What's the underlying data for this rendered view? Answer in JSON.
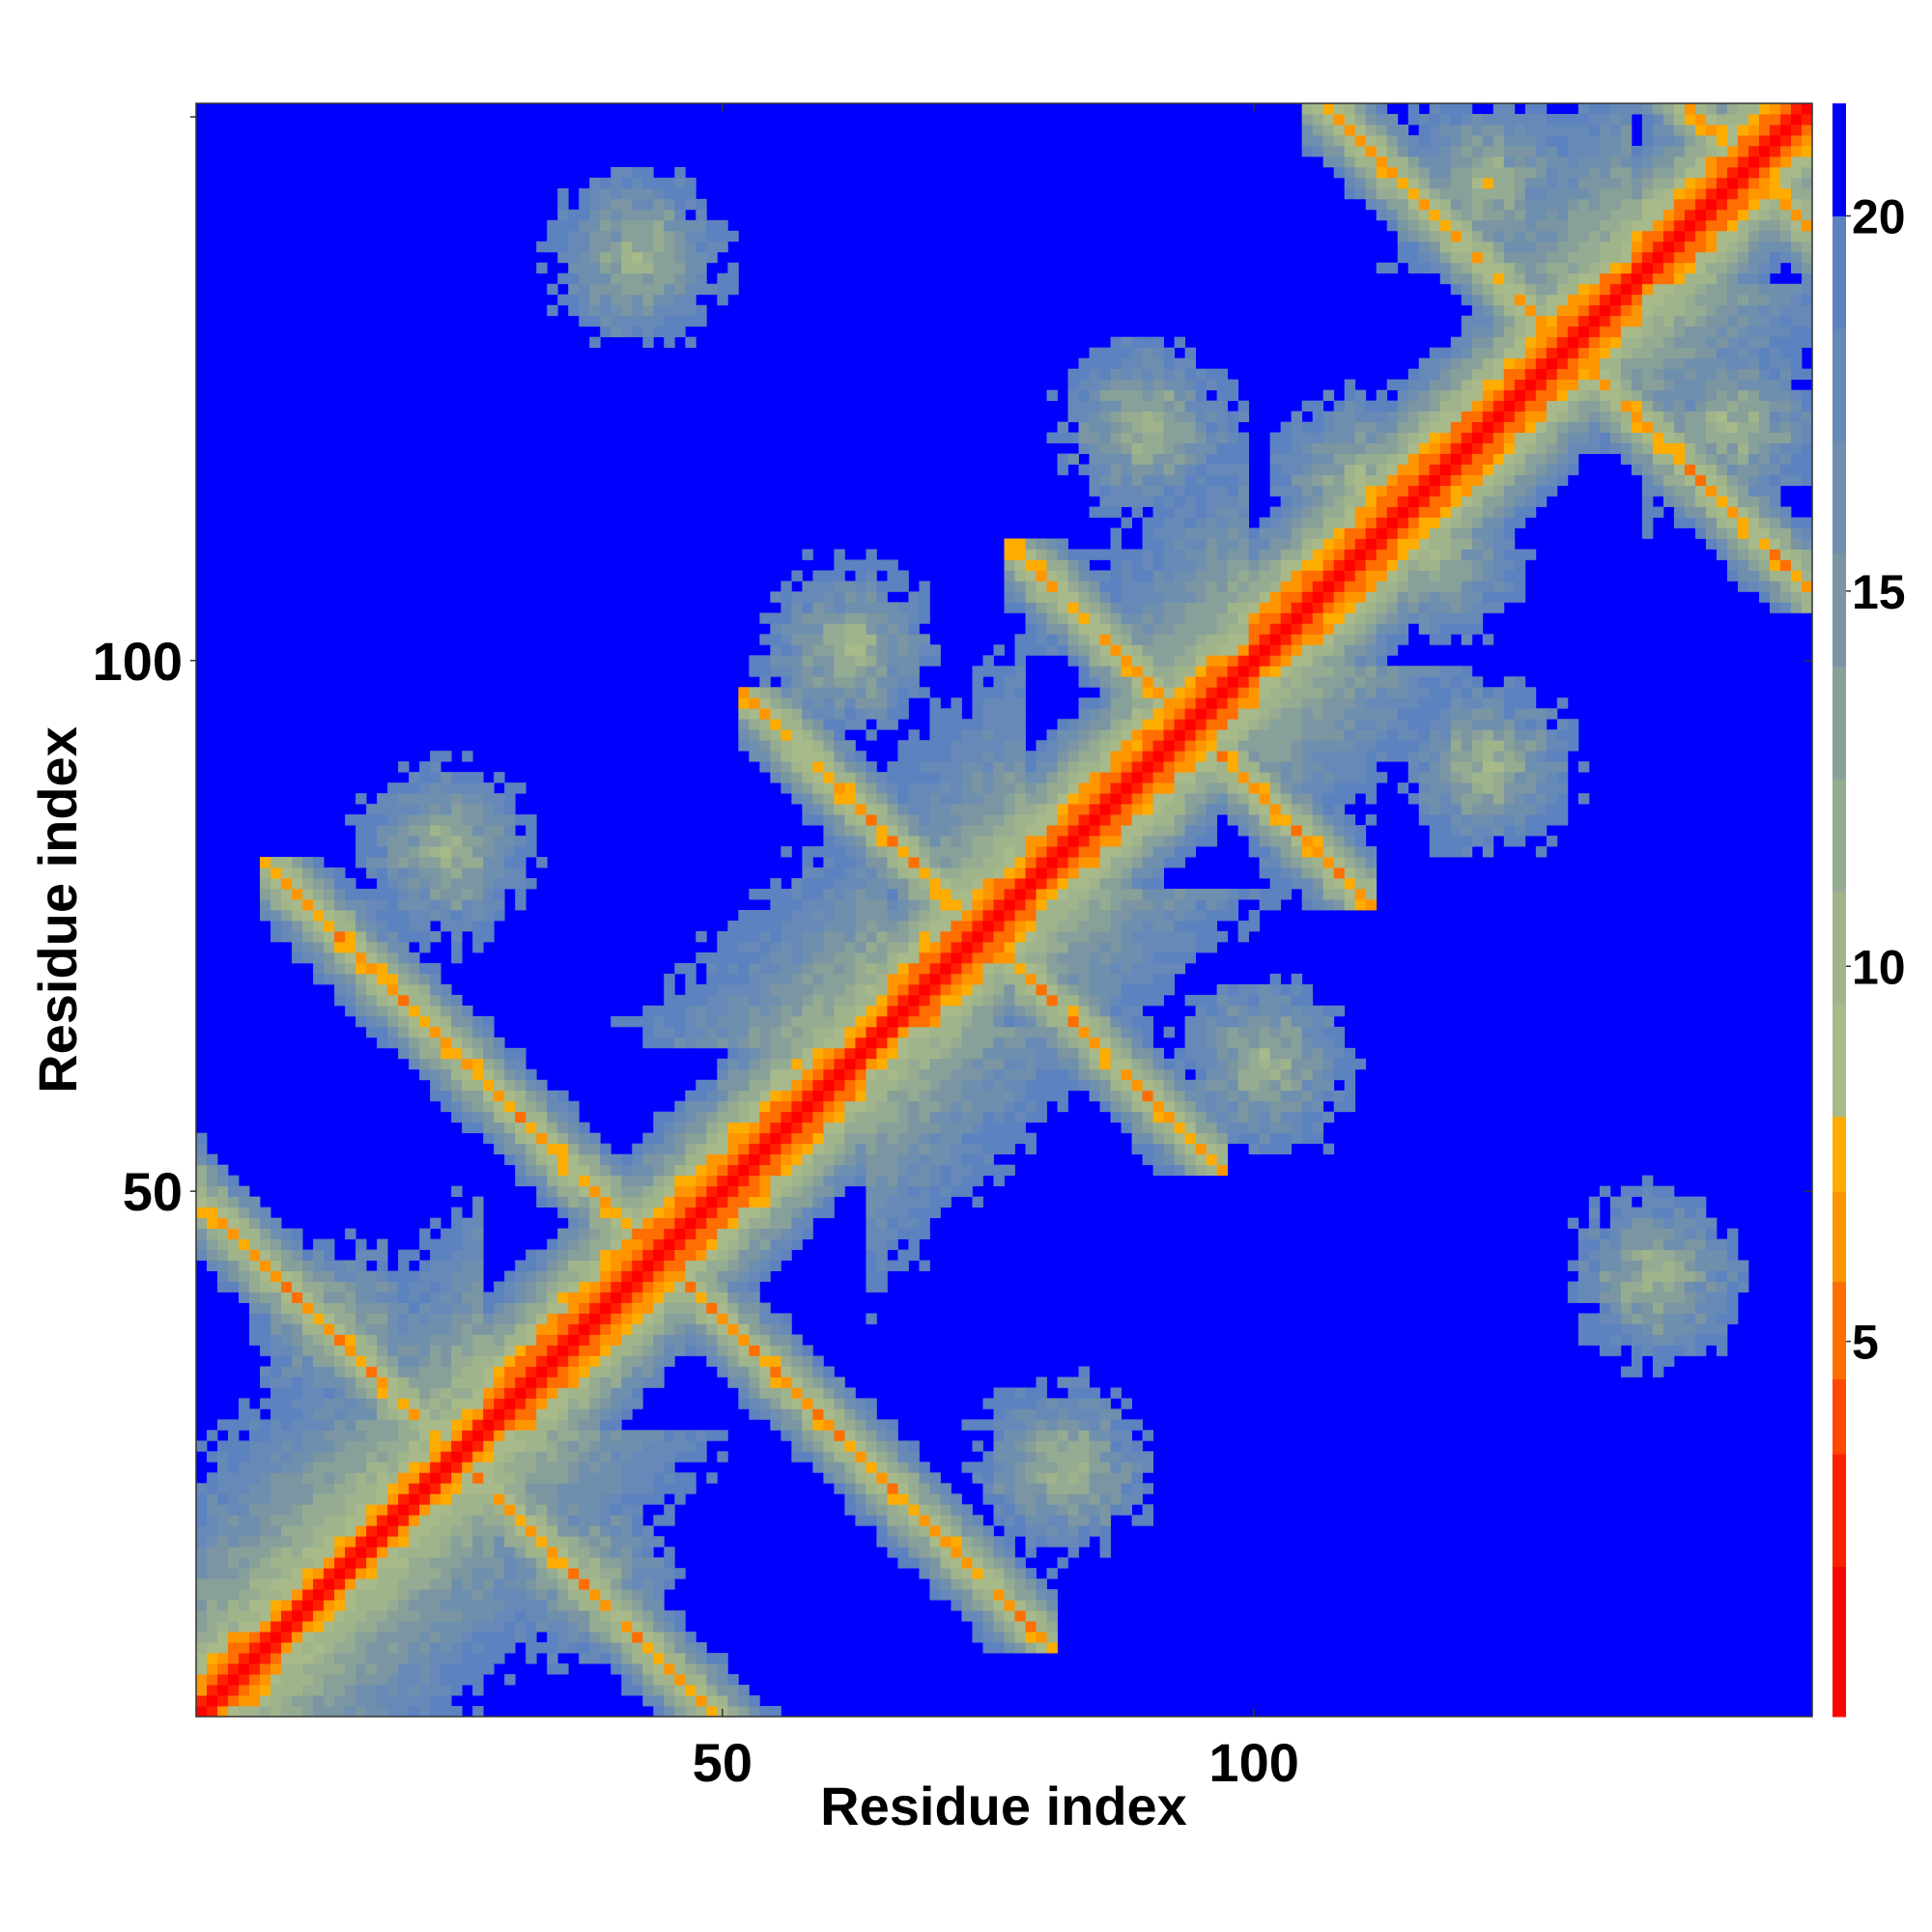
{
  "chart_data": {
    "type": "heatmap",
    "title": "",
    "xlabel": "Residue index",
    "ylabel": "Residue index",
    "n_residues": 152,
    "xlim": [
      1,
      152
    ],
    "ylim": [
      1,
      152
    ],
    "x_ticks": [
      50,
      100
    ],
    "x_tick_labels": [
      "50",
      "100"
    ],
    "y_ticks": [
      50,
      100
    ],
    "y_tick_labels": [
      "50",
      "100"
    ],
    "grid": false,
    "legend": "colorbar-right",
    "colorbar": {
      "range": [
        0,
        21.5
      ],
      "ticks": [
        5,
        10,
        15,
        20
      ],
      "tick_labels": [
        "5",
        "10",
        "15",
        "20"
      ],
      "bins": [
        {
          "max": 2,
          "color": "#ff0000"
        },
        {
          "max": 3.5,
          "color": "#ff2000"
        },
        {
          "max": 4.5,
          "color": "#ff4800"
        },
        {
          "max": 5.8,
          "color": "#ff6e00"
        },
        {
          "max": 7,
          "color": "#ff9600"
        },
        {
          "max": 8,
          "color": "#ffac00"
        },
        {
          "max": 9.5,
          "color": "#a8b98a"
        },
        {
          "max": 11,
          "color": "#a0b48c"
        },
        {
          "max": 12.5,
          "color": "#95ab92"
        },
        {
          "max": 14,
          "color": "#88a09a"
        },
        {
          "max": 15.5,
          "color": "#7b96a2"
        },
        {
          "max": 17,
          "color": "#6f8fae"
        },
        {
          "max": 18.5,
          "color": "#6689b8"
        },
        {
          "max": 20,
          "color": "#5c82bf"
        },
        {
          "max": 21.5,
          "color": "#0000ff"
        }
      ]
    },
    "value_description": "pairwise residue distance",
    "features": {
      "helices": [
        [
          2,
          8
        ],
        [
          28,
          63
        ],
        [
          66,
          79
        ],
        [
          79,
          100
        ],
        [
          100,
          136
        ],
        [
          136,
          152
        ]
      ],
      "antiparallel_contacts": [
        [
          5,
          45
        ],
        [
          20,
          68
        ],
        [
          65,
          84
        ],
        [
          90,
          98
        ],
        [
          118,
          141
        ],
        [
          141,
          152
        ]
      ],
      "domain_contacts": [
        [
          14,
          37
        ],
        [
          24,
          82
        ],
        [
          42,
          138
        ],
        [
          62,
          101
        ],
        [
          90,
          122
        ],
        [
          110,
          117
        ],
        [
          122,
          145
        ]
      ]
    }
  }
}
